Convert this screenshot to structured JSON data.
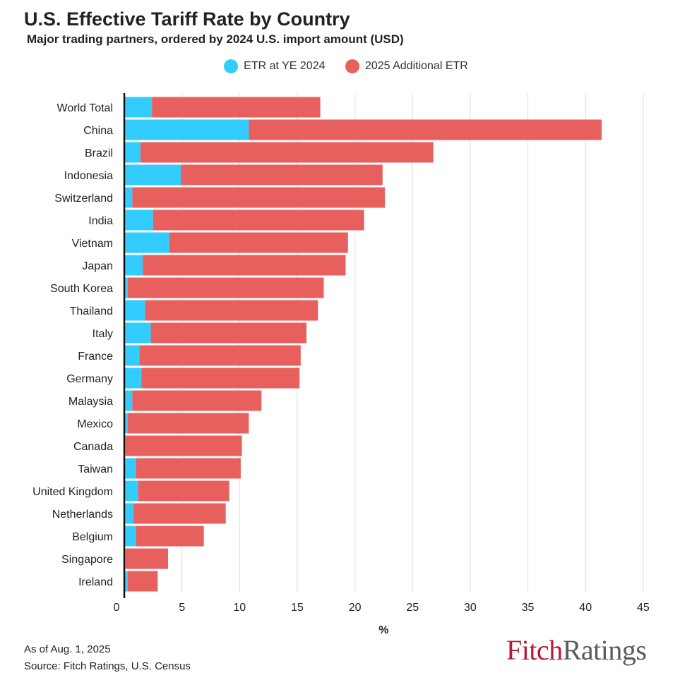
{
  "header": {
    "title": "U.S. Effective Tariff Rate by Country",
    "subtitle": "Major trading partners, ordered by 2024 U.S. import amount (USD)"
  },
  "chart_data": {
    "type": "bar",
    "orientation": "horizontal",
    "stacked": true,
    "categories": [
      "World Total",
      "China",
      "Brazil",
      "Indonesia",
      "Switzerland",
      "India",
      "Vietnam",
      "Japan",
      "South Korea",
      "Thailand",
      "Italy",
      "France",
      "Germany",
      "Malaysia",
      "Mexico",
      "Canada",
      "Taiwan",
      "United Kingdom",
      "Netherlands",
      "Belgium",
      "Singapore",
      "Ireland"
    ],
    "series": [
      {
        "name": "ETR at YE 2024",
        "color": "#33ccff",
        "values": [
          2.4,
          10.8,
          1.4,
          4.9,
          0.7,
          2.5,
          3.9,
          1.6,
          0.3,
          1.8,
          2.3,
          1.3,
          1.5,
          0.7,
          0.3,
          0.1,
          1.0,
          1.2,
          0.8,
          1.0,
          0.1,
          0.3
        ]
      },
      {
        "name": "2025 Additional ETR",
        "color": "#e8605e",
        "values": [
          14.6,
          30.6,
          25.4,
          17.5,
          21.9,
          18.3,
          15.5,
          17.6,
          17.0,
          15.0,
          13.5,
          14.0,
          13.7,
          11.2,
          10.5,
          10.1,
          9.1,
          7.9,
          8.0,
          5.9,
          3.7,
          2.6
        ]
      }
    ],
    "xlabel": "%",
    "ylabel": "",
    "xlim": [
      0,
      45
    ],
    "xticks": [
      "0",
      "5",
      "10",
      "15",
      "20",
      "25",
      "30",
      "35",
      "40",
      "45"
    ],
    "grid": true,
    "legend": "top-center"
  },
  "footer": {
    "as_of": "As of Aug. 1, 2025",
    "source": "Source: Fitch Ratings, U.S. Census"
  },
  "logo": {
    "fitch": "Fitch",
    "ratings": "Ratings"
  }
}
